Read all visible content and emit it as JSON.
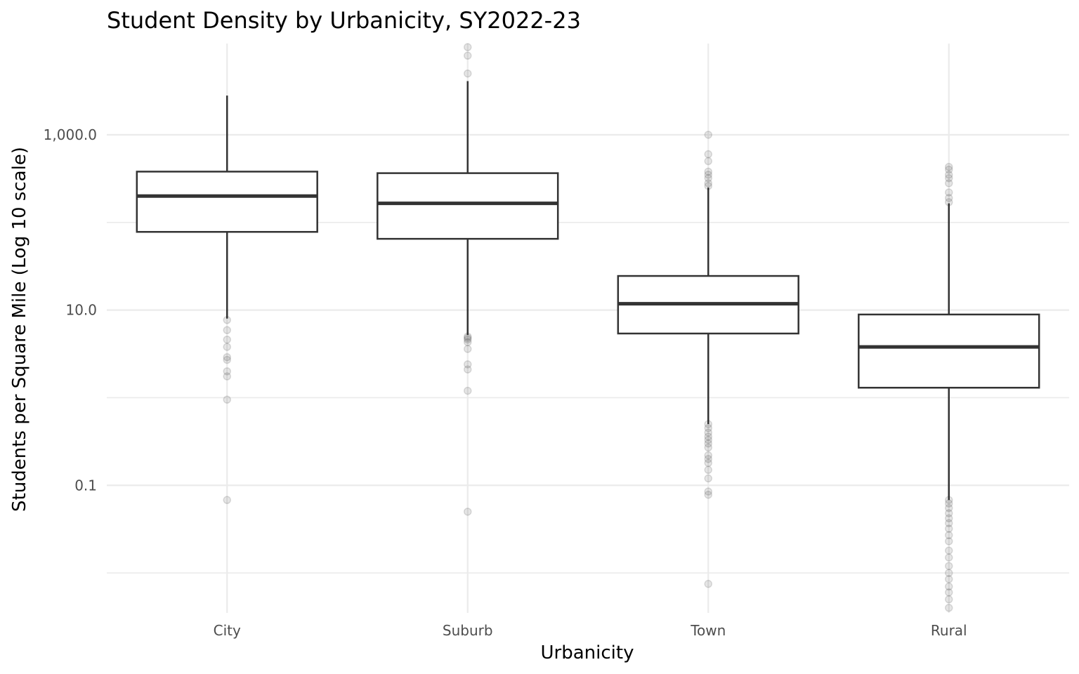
{
  "chart_data": {
    "type": "boxplot",
    "title": "Student Density by Urbanicity, SY2022-23",
    "xlabel": "Urbanicity",
    "ylabel": "Students per Square Mile (Log 10 scale)",
    "y_scale": "log10",
    "ylim": [
      0.0035,
      11000
    ],
    "y_ticks": [
      0.1,
      10,
      1000
    ],
    "y_tick_labels": [
      "0.1",
      "10.0",
      "1,000.0"
    ],
    "y_minor_gridlines": [
      0.01,
      1,
      100
    ],
    "grid": true,
    "legend": "none",
    "categories": [
      "City",
      "Suburb",
      "Town",
      "Rural"
    ],
    "boxes": [
      {
        "category": "City",
        "whisker_low": 8,
        "q1": 78,
        "median": 200,
        "q3": 380,
        "whisker_high": 2800,
        "outliers": [
          7.7,
          5.9,
          4.6,
          3.8,
          2.9,
          2.7,
          2.0,
          1.75,
          0.95,
          0.068
        ]
      },
      {
        "category": "Suburb",
        "whisker_low": 5.2,
        "q1": 65,
        "median": 165,
        "q3": 365,
        "whisker_high": 4100,
        "outliers": [
          10000,
          8000,
          5000,
          5.0,
          4.8,
          4.6,
          4.3,
          3.6,
          2.4,
          2.1,
          1.2,
          0.05
        ]
      },
      {
        "category": "Town",
        "whisker_low": 0.5,
        "q1": 5.4,
        "median": 11.8,
        "q3": 24.5,
        "whisker_high": 250,
        "outliers": [
          1000,
          600,
          500,
          380,
          350,
          320,
          280,
          260,
          0.5,
          0.45,
          0.4,
          0.36,
          0.33,
          0.3,
          0.27,
          0.22,
          0.2,
          0.18,
          0.15,
          0.12,
          0.085,
          0.078,
          0.0075
        ]
      },
      {
        "category": "Rural",
        "whisker_low": 0.068,
        "q1": 1.3,
        "median": 3.8,
        "q3": 8.9,
        "whisker_high": 165,
        "outliers": [
          430,
          400,
          350,
          320,
          280,
          220,
          190,
          170,
          0.068,
          0.062,
          0.055,
          0.048,
          0.042,
          0.037,
          0.032,
          0.027,
          0.023,
          0.018,
          0.015,
          0.012,
          0.01,
          0.0085,
          0.007,
          0.006,
          0.005,
          0.004
        ]
      }
    ]
  }
}
